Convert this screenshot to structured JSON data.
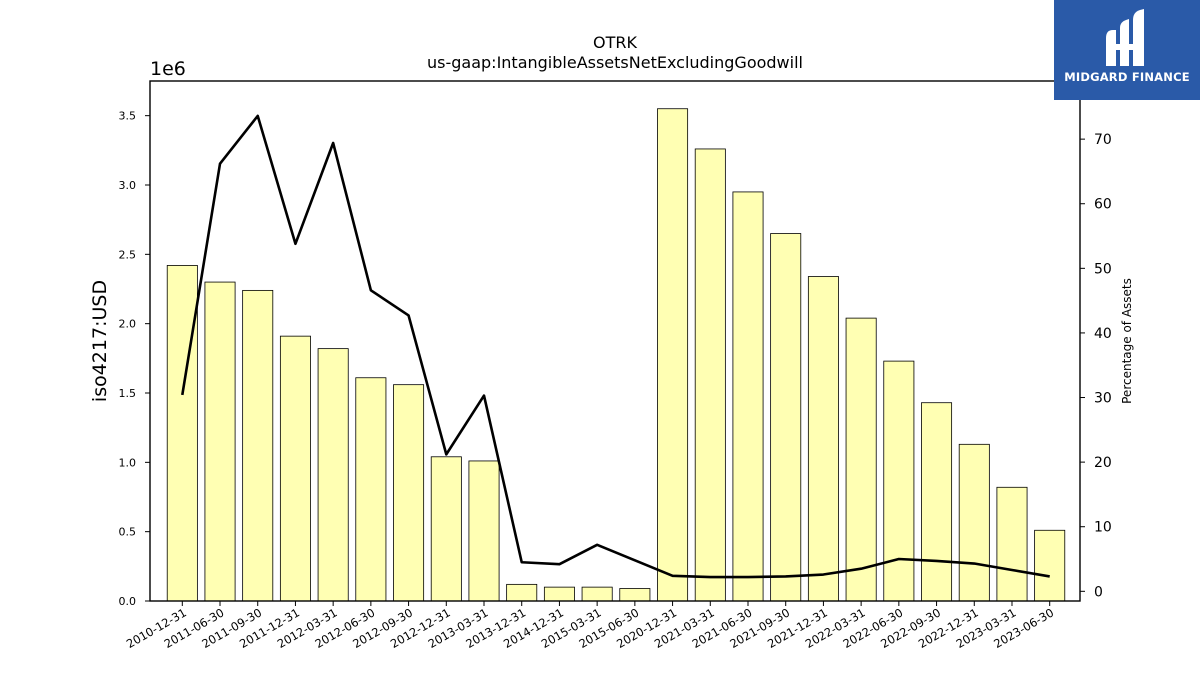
{
  "chart_data": {
    "type": "bar",
    "title": "OTRK",
    "subtitle": "us-gaap:IntangibleAssetsNetExcludingGoodwill",
    "ylabel": "iso4217:USD",
    "y_offset_label": "1e6",
    "y2label": "Percentage of Assets",
    "ylim": [
      0,
      3.75
    ],
    "y2lim": [
      -1.5,
      79
    ],
    "yticks": [
      "0.0",
      "0.5",
      "1.0",
      "1.5",
      "2.0",
      "2.5",
      "3.0",
      "3.5"
    ],
    "y2ticks": [
      "0",
      "10",
      "20",
      "30",
      "40",
      "50",
      "60",
      "70"
    ],
    "categories": [
      "2010-12-31",
      "2011-06-30",
      "2011-09-30",
      "2011-12-31",
      "2012-03-31",
      "2012-06-30",
      "2012-09-30",
      "2012-12-31",
      "2013-03-31",
      "2013-12-31",
      "2014-12-31",
      "2015-03-31",
      "2015-06-30",
      "2020-12-31",
      "2021-03-31",
      "2021-06-30",
      "2021-09-30",
      "2021-12-31",
      "2022-03-31",
      "2022-06-30",
      "2022-09-30",
      "2022-12-31",
      "2023-03-31",
      "2023-06-30"
    ],
    "series": [
      {
        "type": "bar",
        "axis": "left",
        "color": "#ffffb3",
        "values": [
          2.42,
          2.3,
          2.24,
          1.91,
          1.82,
          1.61,
          1.56,
          1.04,
          1.01,
          0.12,
          0.1,
          0.1,
          0.09,
          3.55,
          3.26,
          2.95,
          2.65,
          2.34,
          2.04,
          1.73,
          1.43,
          1.13,
          0.82,
          0.51
        ]
      },
      {
        "type": "line",
        "axis": "right",
        "color": "#000000",
        "values": [
          30.4,
          66.2,
          73.6,
          53.8,
          69.4,
          46.6,
          42.7,
          21.2,
          30.3,
          4.5,
          4.2,
          7.2,
          4.8,
          2.4,
          2.2,
          2.2,
          2.3,
          2.6,
          3.5,
          5.0,
          4.7,
          4.3,
          3.3,
          2.3
        ]
      }
    ],
    "grid": false
  },
  "logo": {
    "text": "MIDGARD FINANCE",
    "bg_color": "#2a5aa8"
  }
}
